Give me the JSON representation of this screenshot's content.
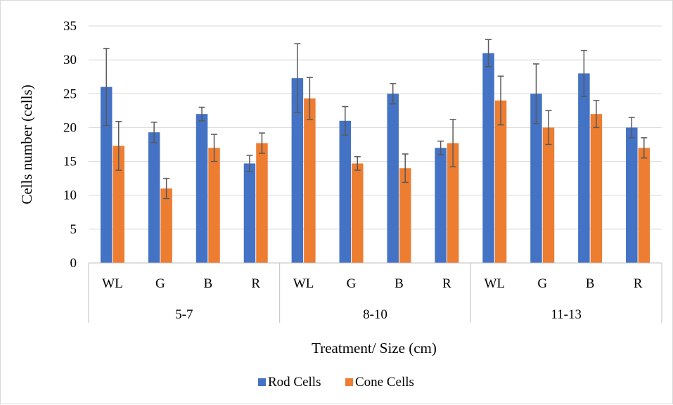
{
  "chart_data": {
    "type": "bar",
    "groups": [
      {
        "label": "5-7",
        "categories": [
          "WL",
          "G",
          "B",
          "R"
        ]
      },
      {
        "label": "8-10",
        "categories": [
          "WL",
          "G",
          "B",
          "R"
        ]
      },
      {
        "label": "11-13",
        "categories": [
          "WL",
          "G",
          "B",
          "R"
        ]
      }
    ],
    "series": [
      {
        "name": "Rod Cells",
        "color": "#4472C4",
        "values": [
          26,
          19.3,
          22,
          14.7,
          27.3,
          21,
          25,
          17,
          31,
          25,
          28,
          20
        ],
        "errors": [
          5.7,
          1.5,
          1.0,
          1.2,
          5.1,
          2.1,
          1.5,
          1.0,
          2.0,
          4.4,
          3.4,
          1.5
        ]
      },
      {
        "name": "Cone Cells",
        "color": "#ED7D31",
        "values": [
          17.3,
          11,
          17,
          17.7,
          24.3,
          14.7,
          14,
          17.7,
          24,
          20,
          22,
          17
        ],
        "errors": [
          3.6,
          1.5,
          2.0,
          1.5,
          3.1,
          1.0,
          2.1,
          3.5,
          3.6,
          2.5,
          2.0,
          1.5
        ]
      }
    ],
    "xlabel": "Treatment/ Size (cm)",
    "ylabel": "Cells  number (cells)",
    "ylim": [
      0,
      35
    ],
    "yticks": [
      0,
      5,
      10,
      15,
      20,
      25,
      30,
      35
    ],
    "grid": true,
    "legend": "bottom"
  }
}
